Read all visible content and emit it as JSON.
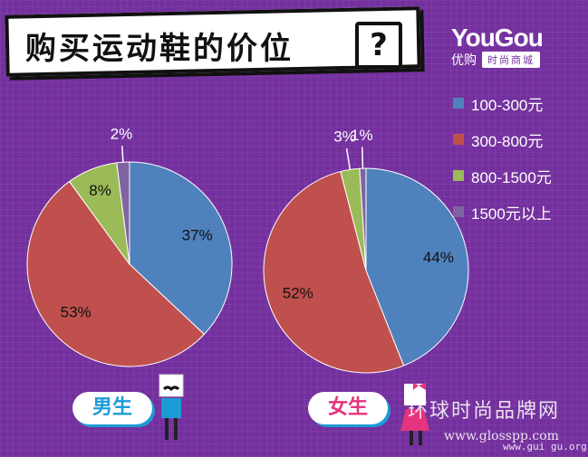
{
  "header": {
    "title": "购买运动鞋的价位",
    "question_mark": "?"
  },
  "logo": {
    "brand": "YouGou",
    "brand_cn": "优购",
    "tagline": "时尚商城"
  },
  "legend": [
    {
      "label": "100-300元",
      "color": "#4f81bd"
    },
    {
      "label": "300-800元",
      "color": "#c0504d"
    },
    {
      "label": "800-1500元",
      "color": "#9bbb59"
    },
    {
      "label": "1500元以上",
      "color": "#8064a2"
    }
  ],
  "chart_data": [
    {
      "type": "pie",
      "title": "男生",
      "categories": [
        "100-300元",
        "300-800元",
        "800-1500元",
        "1500元以上"
      ],
      "values": [
        37,
        53,
        8,
        2
      ],
      "labels": [
        "37%",
        "53%",
        "8%",
        "2%"
      ]
    },
    {
      "type": "pie",
      "title": "女生",
      "categories": [
        "100-300元",
        "300-800元",
        "800-1500元",
        "1500元以上"
      ],
      "values": [
        44,
        52,
        3,
        1
      ],
      "labels": [
        "44%",
        "52%",
        "3%",
        "1%"
      ]
    }
  ],
  "labels": {
    "male": "男生",
    "female": "女生"
  },
  "watermark": {
    "text_cn": "环球时尚品牌网",
    "url": "www.glosspp.com",
    "url2": "www.gui gu.org"
  },
  "colors": {
    "background": "#74309e",
    "male_label": "#1d9bd6",
    "female_label": "#e5337e"
  }
}
